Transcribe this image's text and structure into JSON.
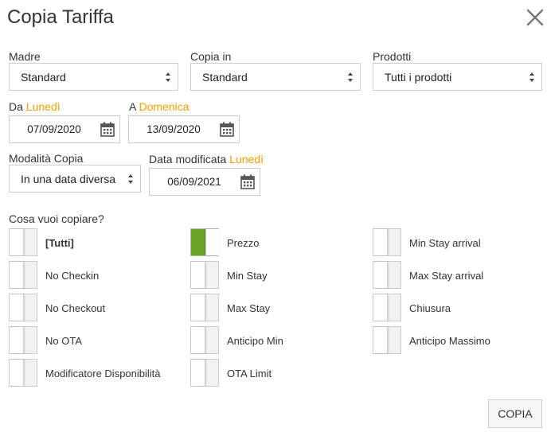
{
  "dialog": {
    "title": "Copia Tariffa"
  },
  "madre": {
    "label": "Madre",
    "value": "Standard"
  },
  "copia_in": {
    "label": "Copia in",
    "value": "Standard"
  },
  "prodotti": {
    "label": "Prodotti",
    "value": "Tutti i prodotti"
  },
  "da": {
    "label": "Da",
    "day": "Lunedì",
    "value": "07/09/2020"
  },
  "a": {
    "label": "A",
    "day": "Domenica",
    "value": "13/09/2020"
  },
  "modalita": {
    "label": "Modalità Copia",
    "value": "In una data diversa"
  },
  "data_modificata": {
    "label": "Data modificata",
    "day": "Lunedì",
    "value": "06/09/2021"
  },
  "copy_section": {
    "question": "Cosa vuoi copiare?",
    "options": [
      {
        "label": "[Tutti]",
        "checked": false
      },
      {
        "label": "Prezzo",
        "checked": true
      },
      {
        "label": "Min Stay arrival",
        "checked": false
      },
      {
        "label": "No Checkin",
        "checked": false
      },
      {
        "label": "Min Stay",
        "checked": false
      },
      {
        "label": "Max Stay arrival",
        "checked": false
      },
      {
        "label": "No Checkout",
        "checked": false
      },
      {
        "label": "Max Stay",
        "checked": false
      },
      {
        "label": "Chiusura",
        "checked": false
      },
      {
        "label": "No OTA",
        "checked": false
      },
      {
        "label": "Anticipo Min",
        "checked": false
      },
      {
        "label": "Anticipo Massimo",
        "checked": false
      },
      {
        "label": "Modificatore Disponibilità",
        "checked": false
      },
      {
        "label": "OTA Limit",
        "checked": false
      }
    ]
  },
  "actions": {
    "copy_label": "COPIA"
  },
  "colors": {
    "accent": "#f0a000",
    "toggle_on": "#6aa528",
    "border": "#cccccc"
  },
  "icons": {
    "close": "close-icon",
    "calendar": "calendar-icon",
    "select_arrows": "sort-arrows-icon"
  }
}
